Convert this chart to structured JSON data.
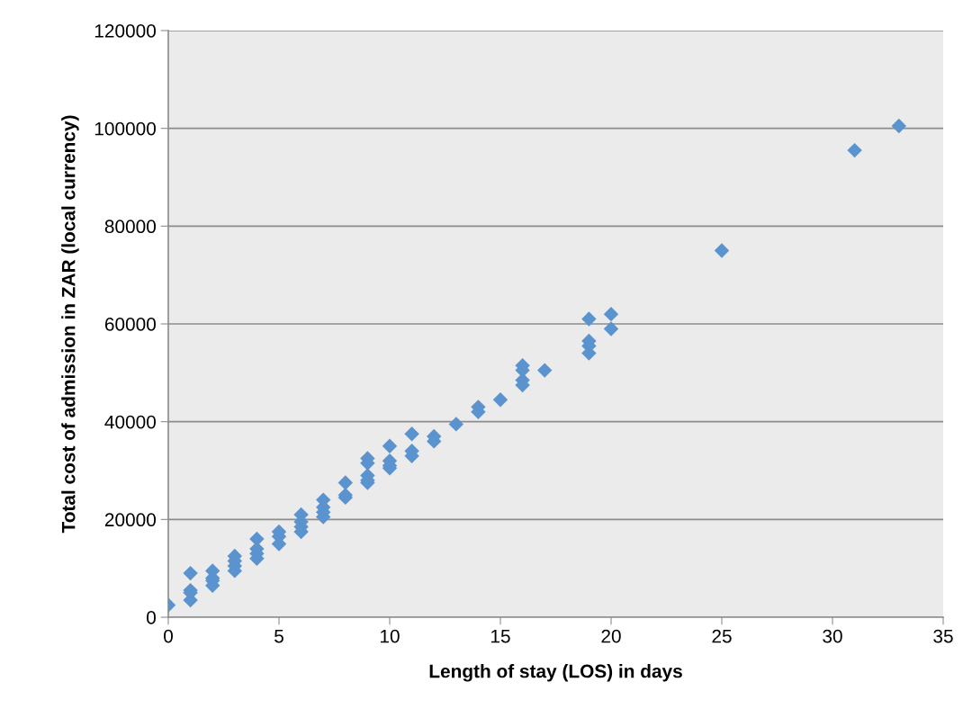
{
  "chart_data": {
    "type": "scatter",
    "xlabel": "Length of stay (LOS) in days",
    "ylabel": "Total cost of admission in ZAR (local currency)",
    "xlim": [
      0,
      35
    ],
    "xticks": [
      0,
      5,
      10,
      15,
      20,
      25,
      30,
      35
    ],
    "ylim": [
      0,
      120000
    ],
    "yticks": [
      0,
      20000,
      40000,
      60000,
      80000,
      100000,
      120000
    ],
    "grid": "y",
    "marker": "diamond",
    "series": [
      {
        "color": "#5b93cf",
        "x": [
          0,
          1,
          1,
          1,
          1,
          2,
          2,
          2,
          2,
          3,
          3,
          3,
          3,
          4,
          4,
          4,
          4,
          5,
          5,
          5,
          6,
          6,
          6,
          6,
          7,
          7,
          7,
          7,
          8,
          8,
          8,
          9,
          9,
          9,
          9,
          9,
          10,
          10,
          10,
          10,
          11,
          11,
          11,
          12,
          12,
          13,
          14,
          14,
          15,
          16,
          16,
          16,
          16,
          17,
          19,
          19,
          19,
          19,
          20,
          20,
          25,
          31,
          33
        ],
        "values": [
          2500,
          9000,
          5500,
          5000,
          3500,
          9500,
          8000,
          7500,
          6500,
          12500,
          11500,
          10500,
          9500,
          16000,
          14000,
          13000,
          12000,
          17500,
          16500,
          15000,
          21000,
          19500,
          18500,
          17500,
          24000,
          22500,
          21500,
          20500,
          27500,
          25000,
          24500,
          32500,
          31500,
          29000,
          28000,
          27500,
          35000,
          32000,
          31000,
          30500,
          37500,
          34000,
          33000,
          37000,
          36000,
          39500,
          43000,
          42000,
          44500,
          51500,
          50500,
          48500,
          47500,
          50500,
          61000,
          56500,
          55500,
          54000,
          62000,
          59000,
          75000,
          95500,
          100500
        ]
      }
    ]
  }
}
